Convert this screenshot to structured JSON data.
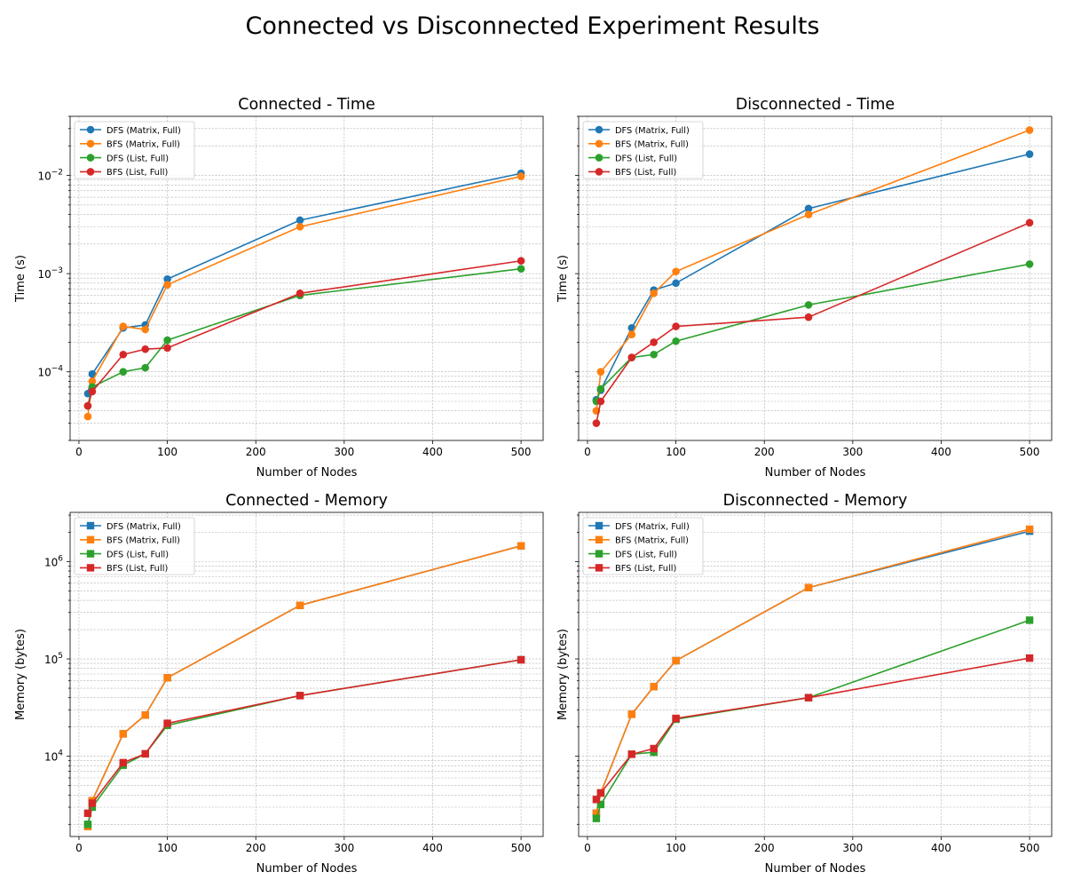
{
  "figure": {
    "title": "Connected vs Disconnected Experiment Results"
  },
  "colors": {
    "dfs_matrix": "#1f77b4",
    "bfs_matrix": "#ff7f0e",
    "dfs_list": "#2ca02c",
    "bfs_list": "#d62728"
  },
  "chart_data": [
    {
      "type": "line",
      "title": "Connected - Time",
      "xlabel": "Number of Nodes",
      "ylabel": "Time (s)",
      "yscale": "log",
      "xlim": [
        -10,
        525
      ],
      "ylim": [
        2e-05,
        0.04
      ],
      "xticks": [
        0,
        100,
        200,
        300,
        400,
        500
      ],
      "xtick_labels": [
        "0",
        "100",
        "200",
        "300",
        "400",
        "500"
      ],
      "yticks": [
        0.0001,
        0.001,
        0.01
      ],
      "ytick_labels": [
        "10",
        "10",
        "10"
      ],
      "ytick_exponents": [
        "−4",
        "−3",
        "−2"
      ],
      "grid": true,
      "legend_position": "top-left",
      "marker": "circle",
      "x": [
        10,
        15,
        50,
        75,
        100,
        250,
        500
      ],
      "series": [
        {
          "name": "DFS (Matrix, Full)",
          "color": "#1f77b4",
          "values": [
            6e-05,
            9.5e-05,
            0.00028,
            0.0003,
            0.00088,
            0.0035,
            0.0105
          ]
        },
        {
          "name": "BFS (Matrix, Full)",
          "color": "#ff7f0e",
          "values": [
            3.5e-05,
            8e-05,
            0.00029,
            0.00027,
            0.00077,
            0.003,
            0.0098
          ]
        },
        {
          "name": "DFS (List, Full)",
          "color": "#2ca02c",
          "values": [
            4.5e-05,
            7e-05,
            0.0001,
            0.00011,
            0.00021,
            0.0006,
            0.00112
          ]
        },
        {
          "name": "BFS (List, Full)",
          "color": "#d62728",
          "values": [
            4.5e-05,
            6.3e-05,
            0.00015,
            0.00017,
            0.000175,
            0.00063,
            0.00135
          ]
        }
      ]
    },
    {
      "type": "line",
      "title": "Disconnected - Time",
      "xlabel": "Number of Nodes",
      "ylabel": "Time (s)",
      "yscale": "log",
      "xlim": [
        -10,
        525
      ],
      "ylim": [
        2e-05,
        0.04
      ],
      "xticks": [
        0,
        100,
        200,
        300,
        400,
        500
      ],
      "xtick_labels": [
        "0",
        "100",
        "200",
        "300",
        "400",
        "500"
      ],
      "yticks": [
        0.0001,
        0.001,
        0.01
      ],
      "ytick_labels": [
        "",
        "",
        ""
      ],
      "ytick_exponents": [
        "",
        "",
        ""
      ],
      "grid": true,
      "legend_position": "top-left",
      "marker": "circle",
      "x": [
        10,
        15,
        50,
        75,
        100,
        250,
        500
      ],
      "series": [
        {
          "name": "DFS (Matrix, Full)",
          "color": "#1f77b4",
          "values": [
            5.2e-05,
            6.5e-05,
            0.00028,
            0.00068,
            0.0008,
            0.0046,
            0.0165
          ]
        },
        {
          "name": "BFS (Matrix, Full)",
          "color": "#ff7f0e",
          "values": [
            4e-05,
            0.0001,
            0.00024,
            0.00063,
            0.00105,
            0.004,
            0.029
          ]
        },
        {
          "name": "DFS (List, Full)",
          "color": "#2ca02c",
          "values": [
            5e-05,
            6.7e-05,
            0.00014,
            0.00015,
            0.000205,
            0.00048,
            0.00125
          ]
        },
        {
          "name": "BFS (List, Full)",
          "color": "#d62728",
          "values": [
            3e-05,
            5e-05,
            0.00014,
            0.0002,
            0.00029,
            0.00036,
            0.0033
          ]
        }
      ]
    },
    {
      "type": "line",
      "title": "Connected - Memory",
      "xlabel": "Number of Nodes",
      "ylabel": "Memory (bytes)",
      "yscale": "log",
      "xlim": [
        -10,
        525
      ],
      "ylim": [
        1500,
        3200000
      ],
      "xticks": [
        0,
        100,
        200,
        300,
        400,
        500
      ],
      "xtick_labels": [
        "0",
        "100",
        "200",
        "300",
        "400",
        "500"
      ],
      "yticks": [
        10000,
        100000,
        1000000
      ],
      "ytick_labels": [
        "10",
        "10",
        "10"
      ],
      "ytick_exponents": [
        "4",
        "5",
        "6"
      ],
      "grid": true,
      "legend_position": "top-left",
      "marker": "square",
      "x": [
        10,
        15,
        50,
        75,
        100,
        250,
        500
      ],
      "series": [
        {
          "name": "DFS (Matrix, Full)",
          "color": "#1f77b4",
          "values": [
            1900,
            3500,
            17000,
            26500,
            64000,
            355000,
            1450000
          ]
        },
        {
          "name": "BFS (Matrix, Full)",
          "color": "#ff7f0e",
          "values": [
            1900,
            3500,
            17000,
            26500,
            64000,
            355000,
            1450000
          ]
        },
        {
          "name": "DFS (List, Full)",
          "color": "#2ca02c",
          "values": [
            2000,
            3000,
            8100,
            10600,
            20800,
            42000,
            98000
          ]
        },
        {
          "name": "BFS (List, Full)",
          "color": "#d62728",
          "values": [
            2600,
            3300,
            8600,
            10600,
            21800,
            42000,
            98000
          ]
        }
      ]
    },
    {
      "type": "line",
      "title": "Disconnected - Memory",
      "xlabel": "Number of Nodes",
      "ylabel": "Memory (bytes)",
      "yscale": "log",
      "xlim": [
        -10,
        525
      ],
      "ylim": [
        1500,
        3200000
      ],
      "xticks": [
        0,
        100,
        200,
        300,
        400,
        500
      ],
      "xtick_labels": [
        "0",
        "100",
        "200",
        "300",
        "400",
        "500"
      ],
      "yticks": [
        10000,
        100000,
        1000000
      ],
      "ytick_labels": [
        "",
        "",
        ""
      ],
      "ytick_exponents": [
        "",
        "",
        ""
      ],
      "grid": true,
      "legend_position": "top-left",
      "marker": "square",
      "x": [
        10,
        15,
        50,
        75,
        100,
        250,
        500
      ],
      "series": [
        {
          "name": "DFS (Matrix, Full)",
          "color": "#1f77b4",
          "values": [
            2600,
            4200,
            27000,
            52000,
            96000,
            540000,
            2050000
          ]
        },
        {
          "name": "BFS (Matrix, Full)",
          "color": "#ff7f0e",
          "values": [
            2600,
            4200,
            27000,
            52000,
            96000,
            540000,
            2150000
          ]
        },
        {
          "name": "DFS (List, Full)",
          "color": "#2ca02c",
          "values": [
            2300,
            3200,
            10500,
            11000,
            24000,
            40000,
            250000
          ]
        },
        {
          "name": "BFS (List, Full)",
          "color": "#d62728",
          "values": [
            3600,
            4200,
            10500,
            12000,
            24500,
            40000,
            102000
          ]
        }
      ]
    }
  ]
}
